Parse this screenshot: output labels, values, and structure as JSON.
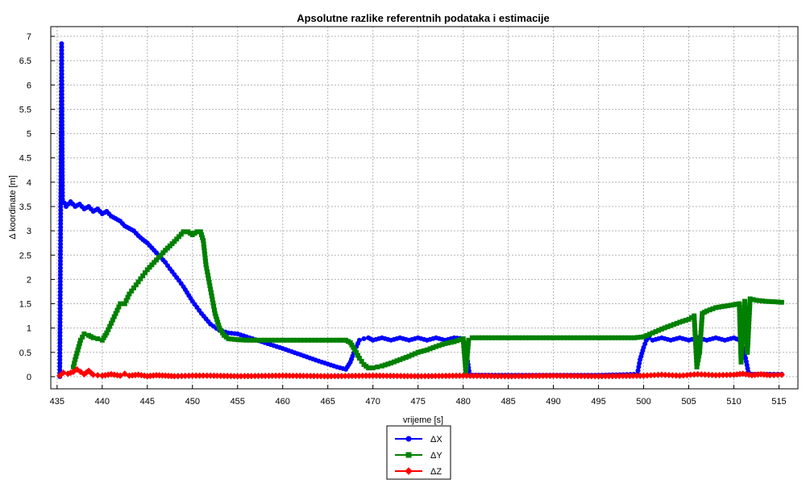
{
  "chart_data": {
    "type": "line",
    "title": "Apsolutne razlike referentnih podataka i estimacije",
    "xlabel": "vrijeme [s]",
    "ylabel": "Δ koordinate [m]",
    "xlim": [
      434.3,
      517.1
    ],
    "ylim": [
      -0.25,
      7.2
    ],
    "x_ticks": [
      435,
      440,
      445,
      450,
      455,
      460,
      465,
      470,
      475,
      480,
      485,
      490,
      495,
      500,
      505,
      510,
      515
    ],
    "y_ticks": [
      0,
      0.5,
      1,
      1.5,
      2,
      2.5,
      3,
      3.5,
      4,
      4.5,
      5,
      5.5,
      6,
      6.5,
      7
    ],
    "x_tick_labels": [
      "435",
      "440",
      "445",
      "450",
      "455",
      "460",
      "465",
      "470",
      "475",
      "480",
      "485",
      "490",
      "495",
      "500",
      "505",
      "510",
      "515"
    ],
    "y_tick_labels": [
      "0",
      "0.5",
      "1",
      "1.5",
      "2",
      "2.5",
      "3",
      "3.5",
      "4",
      "4.5",
      "5",
      "5.5",
      "6",
      "6.5",
      "7"
    ],
    "grid": true,
    "legend_position": "bottom-center",
    "series": [
      {
        "name": "ΔX",
        "color": "#0000ff",
        "marker": "circle",
        "x": [
          435.3,
          435.5,
          435.6,
          436.0,
          436.5,
          437.0,
          437.5,
          438.0,
          438.5,
          439.0,
          439.5,
          440.0,
          440.5,
          441.0,
          441.5,
          442.0,
          442.5,
          443.0,
          443.5,
          444.0,
          444.5,
          445.0,
          445.5,
          446.0,
          446.5,
          447.0,
          447.5,
          448.0,
          448.5,
          449.0,
          450.0,
          451.0,
          452.0,
          453.0,
          454.0,
          455.0,
          456.0,
          458.0,
          460.0,
          462.0,
          464.0,
          466.0,
          467.0,
          467.5,
          468.0,
          468.5,
          469.0,
          469.5,
          470.0,
          471.0,
          472.0,
          473.0,
          474.0,
          475.0,
          476.0,
          477.0,
          478.0,
          479.0,
          480.0,
          480.4,
          480.7,
          481.0,
          485.0,
          490.0,
          495.0,
          499.3,
          499.6,
          500.0,
          500.3,
          500.6,
          501.0,
          502.0,
          503.0,
          504.0,
          505.0,
          506.0,
          507.0,
          508.0,
          509.0,
          510.0,
          510.6,
          511.0,
          511.3,
          511.6,
          512.0,
          513.0,
          514.0,
          515.3
        ],
        "values": [
          0.0,
          6.85,
          3.65,
          3.5,
          3.6,
          3.5,
          3.55,
          3.45,
          3.5,
          3.4,
          3.45,
          3.35,
          3.4,
          3.3,
          3.25,
          3.2,
          3.1,
          3.05,
          3.0,
          2.9,
          2.82,
          2.75,
          2.65,
          2.55,
          2.45,
          2.35,
          2.22,
          2.1,
          1.98,
          1.85,
          1.55,
          1.3,
          1.08,
          0.95,
          0.9,
          0.88,
          0.82,
          0.7,
          0.58,
          0.45,
          0.32,
          0.2,
          0.15,
          0.3,
          0.55,
          0.75,
          0.78,
          0.8,
          0.75,
          0.8,
          0.75,
          0.8,
          0.75,
          0.8,
          0.75,
          0.8,
          0.75,
          0.8,
          0.78,
          0.45,
          0.05,
          0.03,
          0.03,
          0.03,
          0.03,
          0.05,
          0.35,
          0.6,
          0.75,
          0.8,
          0.75,
          0.8,
          0.75,
          0.8,
          0.75,
          0.8,
          0.75,
          0.8,
          0.75,
          0.8,
          0.75,
          0.6,
          0.38,
          0.1,
          0.05,
          0.05,
          0.05,
          0.05
        ]
      },
      {
        "name": "ΔY",
        "color": "#008000",
        "marker": "square",
        "x": [
          436.8,
          437.0,
          437.3,
          437.6,
          438.0,
          438.5,
          439.0,
          439.5,
          440.0,
          440.5,
          441.0,
          441.5,
          442.0,
          442.5,
          443.0,
          444.0,
          445.0,
          446.0,
          447.0,
          448.0,
          448.5,
          449.0,
          449.5,
          450.0,
          450.5,
          450.9,
          451.2,
          451.5,
          452.0,
          452.5,
          453.0,
          453.5,
          454.0,
          455.0,
          456.0,
          458.0,
          460.0,
          462.0,
          464.0,
          466.0,
          467.0,
          467.5,
          468.0,
          468.5,
          469.0,
          469.5,
          470.0,
          470.5,
          471.0,
          472.0,
          473.0,
          474.0,
          475.0,
          476.0,
          477.0,
          478.0,
          479.0,
          480.0,
          480.3,
          480.6,
          481.0,
          485.0,
          490.0,
          495.0,
          499.0,
          500.0,
          501.0,
          502.0,
          503.0,
          504.0,
          505.0,
          505.6,
          505.9,
          506.2,
          506.5,
          507.0,
          508.0,
          509.0,
          510.0,
          510.6,
          510.8,
          511.0,
          511.2,
          511.5,
          511.8,
          512.5,
          513.5,
          514.5,
          515.3
        ],
        "values": [
          0.2,
          0.35,
          0.55,
          0.75,
          0.88,
          0.85,
          0.8,
          0.78,
          0.75,
          0.9,
          1.1,
          1.3,
          1.5,
          1.5,
          1.7,
          1.95,
          2.2,
          2.4,
          2.6,
          2.78,
          2.88,
          2.98,
          2.98,
          2.92,
          2.98,
          2.98,
          2.8,
          2.3,
          1.8,
          1.3,
          1.0,
          0.85,
          0.78,
          0.76,
          0.75,
          0.75,
          0.75,
          0.75,
          0.75,
          0.75,
          0.75,
          0.7,
          0.55,
          0.38,
          0.25,
          0.18,
          0.18,
          0.2,
          0.22,
          0.28,
          0.35,
          0.42,
          0.5,
          0.55,
          0.62,
          0.68,
          0.72,
          0.78,
          0.1,
          0.75,
          0.8,
          0.8,
          0.8,
          0.8,
          0.8,
          0.82,
          0.9,
          0.98,
          1.05,
          1.12,
          1.18,
          1.25,
          0.2,
          0.5,
          1.3,
          1.35,
          1.42,
          1.45,
          1.48,
          1.5,
          0.3,
          1.0,
          1.55,
          0.5,
          1.6,
          1.57,
          1.55,
          1.54,
          1.53
        ]
      },
      {
        "name": "ΔZ",
        "color": "#ff0000",
        "marker": "diamond",
        "x": [
          435.3,
          435.7,
          436.2,
          436.8,
          437.2,
          437.6,
          438.0,
          438.5,
          439.0,
          439.5,
          440.0,
          441.0,
          442.0,
          442.5,
          443.0,
          444.0,
          445.0,
          446.0,
          447.0,
          448.0,
          450.0,
          452.0,
          455.0,
          460.0,
          465.0,
          470.0,
          475.0,
          480.0,
          485.0,
          490.0,
          495.0,
          500.0,
          502.0,
          504.0,
          506.0,
          508.0,
          510.0,
          511.0,
          512.0,
          513.0,
          514.0,
          515.3
        ],
        "values": [
          0.02,
          0.08,
          0.06,
          0.1,
          0.15,
          0.1,
          0.05,
          0.12,
          0.04,
          0.03,
          0.02,
          0.05,
          0.02,
          0.06,
          0.02,
          0.04,
          0.01,
          0.03,
          0.02,
          0.01,
          0.02,
          0.02,
          0.01,
          0.02,
          0.01,
          0.02,
          0.01,
          0.02,
          0.01,
          0.02,
          0.01,
          0.02,
          0.04,
          0.02,
          0.05,
          0.03,
          0.04,
          0.06,
          0.03,
          0.05,
          0.03,
          0.04
        ]
      }
    ]
  }
}
